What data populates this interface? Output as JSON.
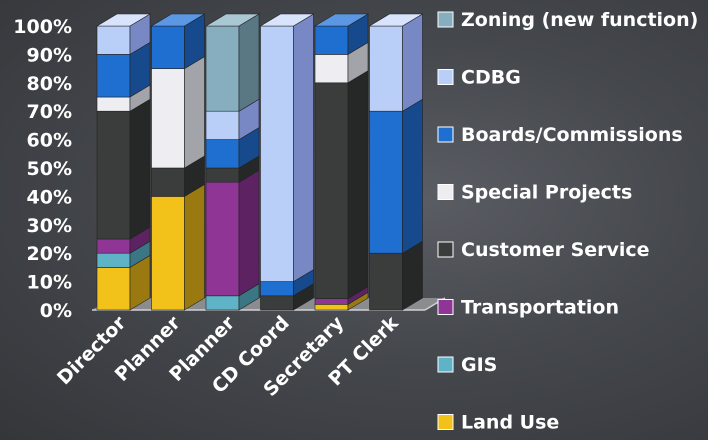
{
  "chart_data": {
    "type": "bar",
    "stacked": true,
    "three_d": true,
    "percent_stacked": true,
    "categories": [
      "Director",
      "Planner",
      "Planner",
      "CD Coord",
      "Secretary",
      "PT Clerk"
    ],
    "y_ticks": [
      "0%",
      "10%",
      "20%",
      "30%",
      "40%",
      "50%",
      "60%",
      "70%",
      "80%",
      "90%",
      "100%"
    ],
    "ylim": [
      0,
      100
    ],
    "grid": false,
    "legend_position": "right",
    "series": [
      {
        "name": "Land Use",
        "color": "#f2c21a",
        "side": "#9a7a10",
        "top": "#f8dc70",
        "values": [
          15,
          40,
          0,
          0,
          2,
          0
        ]
      },
      {
        "name": "GIS",
        "color": "#5fb3c7",
        "side": "#3b7684",
        "top": "#8dd0df",
        "values": [
          5,
          0,
          5,
          0,
          0,
          0
        ]
      },
      {
        "name": "Transportation",
        "color": "#8e3595",
        "side": "#5c2261",
        "top": "#b863be",
        "values": [
          5,
          0,
          40,
          0,
          2,
          0
        ]
      },
      {
        "name": "Customer Service",
        "color": "#3b3d3d",
        "side": "#262828",
        "top": "#5a5c5c",
        "values": [
          45,
          10,
          5,
          5,
          76,
          20
        ]
      },
      {
        "name": "Special Projects",
        "color": "#eeeef2",
        "side": "#a3a3aa",
        "top": "#ffffff",
        "values": [
          5,
          35,
          0,
          0,
          10,
          0
        ]
      },
      {
        "name": "Boards/Commissions",
        "color": "#1f6fd1",
        "side": "#174a8c",
        "top": "#5c97e3",
        "values": [
          15,
          15,
          10,
          5,
          10,
          50
        ]
      },
      {
        "name": "CDBG",
        "color": "#b9cff7",
        "side": "#7888c4",
        "top": "#d9e4fc",
        "values": [
          10,
          0,
          10,
          90,
          0,
          30
        ]
      },
      {
        "name": "Zoning (new function)",
        "color": "#86aebe",
        "side": "#5a7884",
        "top": "#a9c8d4",
        "values": [
          0,
          0,
          30,
          0,
          0,
          0
        ]
      }
    ],
    "legend_order": [
      "Zoning (new function)",
      "CDBG",
      "Boards/Commissions",
      "Special Projects",
      "Customer Service",
      "Transportation",
      "GIS",
      "Land Use"
    ]
  }
}
